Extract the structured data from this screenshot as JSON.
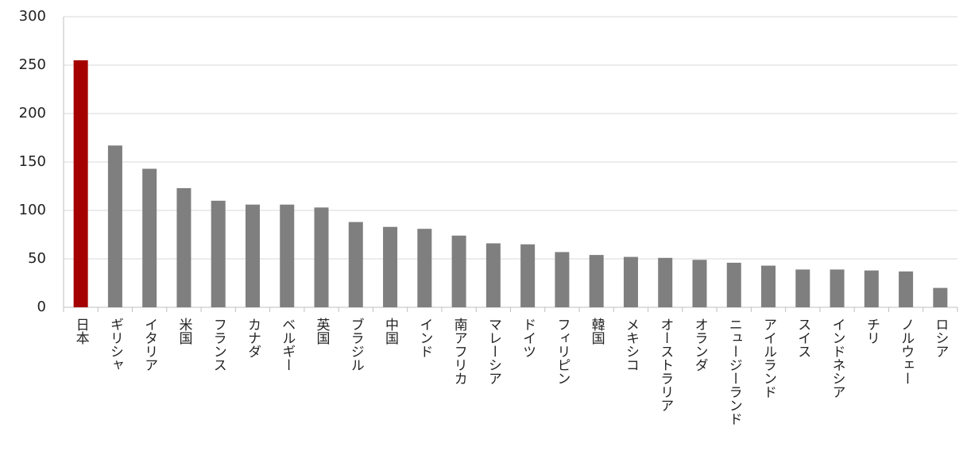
{
  "chart_data": {
    "type": "bar",
    "categories": [
      "日本",
      "ギリシャ",
      "イタリア",
      "米国",
      "フランス",
      "カナダ",
      "ベルギー",
      "英国",
      "ブラジル",
      "中国",
      "インド",
      "南アフリカ",
      "マレーシア",
      "ドイツ",
      "フィリピン",
      "韓国",
      "メキシコ",
      "オーストラリア",
      "オランダ",
      "ニュージーランド",
      "アイルランド",
      "スイス",
      "インドネシア",
      "チリ",
      "ノルウェー",
      "ロシア"
    ],
    "values": [
      255,
      167,
      143,
      123,
      110,
      106,
      106,
      103,
      88,
      83,
      81,
      74,
      66,
      65,
      57,
      54,
      52,
      51,
      49,
      46,
      43,
      39,
      39,
      38,
      37,
      20
    ],
    "colors": [
      "#a50000",
      "#7f7f7f",
      "#7f7f7f",
      "#7f7f7f",
      "#7f7f7f",
      "#7f7f7f",
      "#7f7f7f",
      "#7f7f7f",
      "#7f7f7f",
      "#7f7f7f",
      "#7f7f7f",
      "#7f7f7f",
      "#7f7f7f",
      "#7f7f7f",
      "#7f7f7f",
      "#7f7f7f",
      "#7f7f7f",
      "#7f7f7f",
      "#7f7f7f",
      "#7f7f7f",
      "#7f7f7f",
      "#7f7f7f",
      "#7f7f7f",
      "#7f7f7f",
      "#7f7f7f",
      "#7f7f7f"
    ],
    "ylim": [
      0,
      300
    ],
    "yticks": [
      0,
      50,
      100,
      150,
      200,
      250,
      300
    ],
    "grid": true
  }
}
